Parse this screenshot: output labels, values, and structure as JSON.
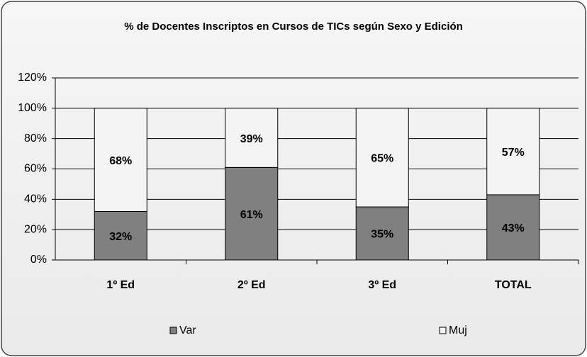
{
  "chart_data": {
    "type": "stacked_bar",
    "title": "% de Docentes Inscriptos en Cursos de TICs según Sexo y Edición",
    "categories": [
      "1º Ed",
      "2º Ed",
      "3º Ed",
      "TOTAL"
    ],
    "series": [
      {
        "name": "Var",
        "color": "#808080",
        "values": [
          32,
          61,
          35,
          43
        ],
        "value_labels": [
          "32%",
          "61%",
          "35%",
          "43%"
        ]
      },
      {
        "name": "Muj",
        "color": "#f4f4f4",
        "values": [
          68,
          39,
          65,
          57
        ],
        "value_labels": [
          "68%",
          "39%",
          "65%",
          "57%"
        ]
      }
    ],
    "ylim": [
      0,
      120
    ],
    "yticks": [
      {
        "value": 0,
        "label": "0%"
      },
      {
        "value": 20,
        "label": "20%"
      },
      {
        "value": 40,
        "label": "40%"
      },
      {
        "value": 60,
        "label": "60%"
      },
      {
        "value": 80,
        "label": "80%"
      },
      {
        "value": 100,
        "label": "100%"
      },
      {
        "value": 120,
        "label": "120%"
      }
    ],
    "grid": true
  }
}
